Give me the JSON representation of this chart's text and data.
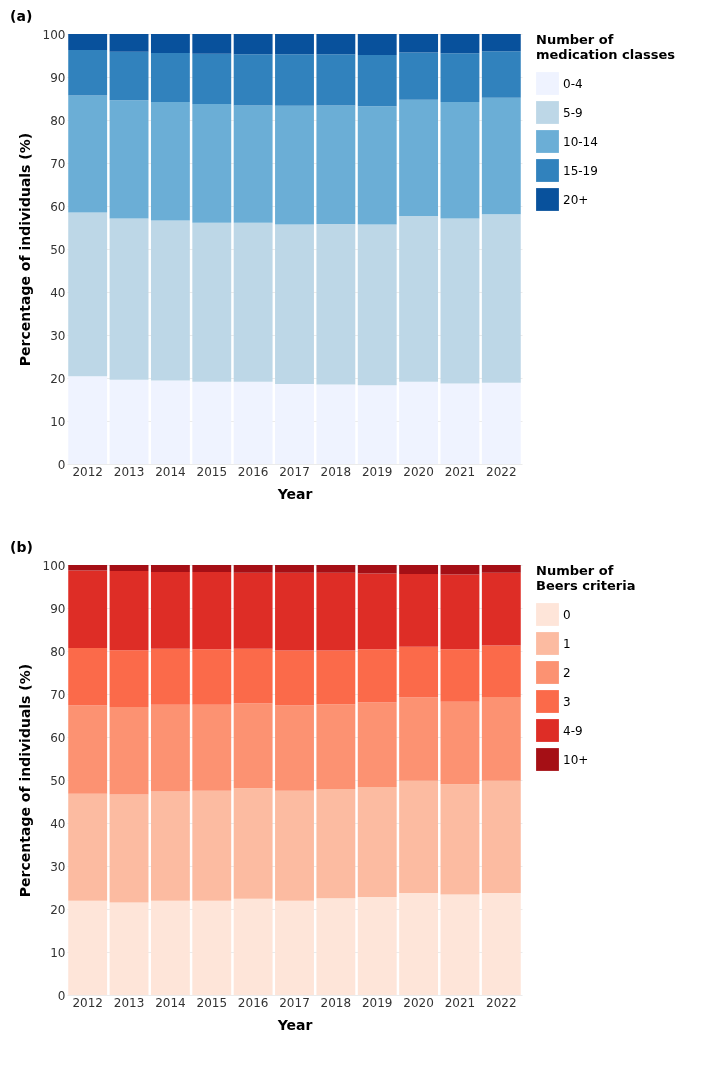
{
  "chart_data": [
    {
      "type": "bar",
      "title": "(a)",
      "xlabel": "Year",
      "ylabel": "Percentage of individuals (%)",
      "legend_title": "Number of\nmedication classes",
      "stacked": true,
      "categories": [
        "2012",
        "2013",
        "2014",
        "2015",
        "2016",
        "2017",
        "2018",
        "2019",
        "2020",
        "2021",
        "2022"
      ],
      "series": [
        {
          "name": "0-4",
          "color": "#eff3ff",
          "values": [
            20.4,
            19.6,
            19.4,
            19.1,
            19.1,
            18.6,
            18.5,
            18.3,
            19.1,
            18.7,
            18.9
          ]
        },
        {
          "name": "5-9",
          "color": "#bdd7e7",
          "values": [
            38.1,
            37.5,
            37.2,
            37.0,
            37.0,
            37.1,
            37.3,
            37.4,
            38.6,
            38.4,
            39.2
          ]
        },
        {
          "name": "10-14",
          "color": "#6baed6",
          "values": [
            27.2,
            27.5,
            27.6,
            27.6,
            27.3,
            27.6,
            27.6,
            27.5,
            27.0,
            27.1,
            27.1
          ]
        },
        {
          "name": "15-19",
          "color": "#3182bd",
          "values": [
            10.6,
            11.3,
            11.4,
            11.7,
            11.9,
            12.0,
            11.9,
            11.9,
            11.0,
            11.3,
            10.8
          ]
        },
        {
          "name": "20+",
          "color": "#08519c",
          "values": [
            3.7,
            4.1,
            4.4,
            4.6,
            4.7,
            4.7,
            4.7,
            4.9,
            4.3,
            4.5,
            4.0
          ]
        }
      ],
      "ylim": [
        0,
        100
      ],
      "yticks": [
        0,
        10,
        20,
        30,
        40,
        50,
        60,
        70,
        80,
        90,
        100
      ],
      "grid": "y",
      "legend": "right"
    },
    {
      "type": "bar",
      "title": "(b)",
      "xlabel": "Year",
      "ylabel": "Percentage of individuals (%)",
      "legend_title": "Number of\nBeers criteria",
      "stacked": true,
      "categories": [
        "2012",
        "2013",
        "2014",
        "2015",
        "2016",
        "2017",
        "2018",
        "2019",
        "2020",
        "2021",
        "2022"
      ],
      "series": [
        {
          "name": "0",
          "color": "#fee5d9",
          "values": [
            21.9,
            21.5,
            21.9,
            21.9,
            22.4,
            21.9,
            22.5,
            22.8,
            23.7,
            23.4,
            23.7
          ]
        },
        {
          "name": "1",
          "color": "#fcbba1",
          "values": [
            24.9,
            25.1,
            25.4,
            25.6,
            25.7,
            25.6,
            25.4,
            25.6,
            26.1,
            25.6,
            26.1
          ]
        },
        {
          "name": "2",
          "color": "#fc9272",
          "values": [
            20.5,
            20.4,
            20.2,
            20.0,
            19.7,
            19.8,
            19.7,
            19.6,
            19.4,
            19.2,
            19.5
          ]
        },
        {
          "name": "3",
          "color": "#fb6a4a",
          "values": [
            13.4,
            13.2,
            13.0,
            12.9,
            12.7,
            12.8,
            12.5,
            12.4,
            11.8,
            12.2,
            12.0
          ]
        },
        {
          "name": "4-9",
          "color": "#de2d26",
          "values": [
            18.0,
            18.4,
            17.9,
            18.0,
            17.7,
            18.1,
            18.1,
            17.6,
            16.9,
            17.4,
            16.9
          ]
        },
        {
          "name": "10+",
          "color": "#a50f15",
          "values": [
            1.3,
            1.4,
            1.6,
            1.6,
            1.8,
            1.8,
            1.8,
            2.0,
            2.1,
            2.2,
            1.8
          ]
        }
      ],
      "ylim": [
        0,
        100
      ],
      "yticks": [
        0,
        10,
        20,
        30,
        40,
        50,
        60,
        70,
        80,
        90,
        100
      ],
      "grid": "y",
      "legend": "right"
    }
  ]
}
